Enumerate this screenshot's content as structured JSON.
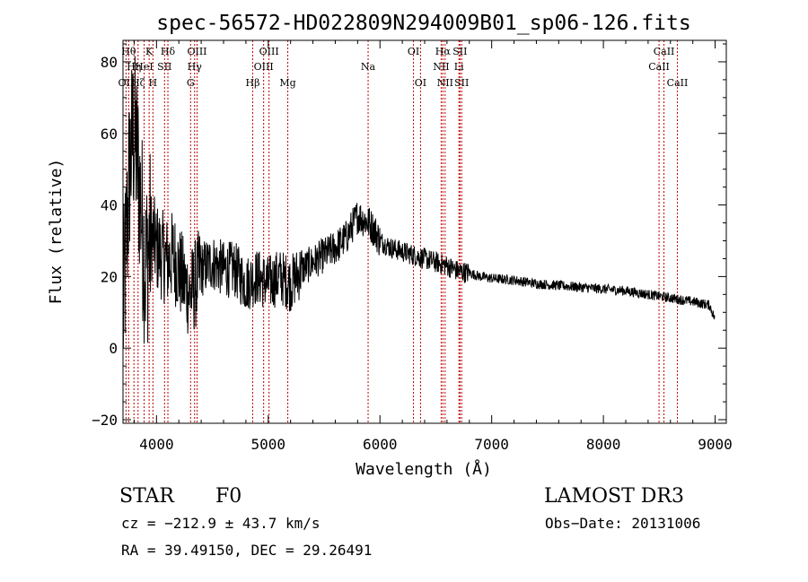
{
  "chart_data": {
    "type": "line",
    "title": "spec-56572-HD022809N294009B01_sp06-126.fits",
    "xlabel": "Wavelength (Å)",
    "ylabel": "Flux (relative)",
    "xlim": [
      3700,
      9100
    ],
    "ylim": [
      -21,
      86
    ],
    "xticks": [
      4000,
      5000,
      6000,
      7000,
      8000,
      9000
    ],
    "yticks": [
      -20,
      0,
      20,
      40,
      60,
      80
    ],
    "grid": false,
    "series": [
      {
        "name": "flux",
        "anchors": [
          [
            3700,
            8
          ],
          [
            3730,
            30
          ],
          [
            3760,
            50
          ],
          [
            3790,
            60
          ],
          [
            3820,
            55
          ],
          [
            3860,
            40
          ],
          [
            3900,
            22
          ],
          [
            3950,
            32
          ],
          [
            4000,
            28
          ],
          [
            4050,
            26
          ],
          [
            4100,
            24
          ],
          [
            4150,
            26
          ],
          [
            4200,
            22
          ],
          [
            4250,
            18
          ],
          [
            4300,
            15
          ],
          [
            4350,
            18
          ],
          [
            4400,
            22
          ],
          [
            4500,
            24
          ],
          [
            4600,
            22
          ],
          [
            4700,
            22
          ],
          [
            4800,
            18
          ],
          [
            4900,
            20
          ],
          [
            5000,
            18
          ],
          [
            5100,
            20
          ],
          [
            5200,
            18
          ],
          [
            5300,
            22
          ],
          [
            5400,
            24
          ],
          [
            5500,
            26
          ],
          [
            5600,
            28
          ],
          [
            5700,
            31
          ],
          [
            5750,
            34
          ],
          [
            5800,
            37
          ],
          [
            5850,
            36
          ],
          [
            5900,
            35
          ],
          [
            5950,
            33
          ],
          [
            6000,
            30
          ],
          [
            6100,
            28
          ],
          [
            6200,
            27
          ],
          [
            6300,
            26
          ],
          [
            6400,
            25
          ],
          [
            6500,
            24
          ],
          [
            6600,
            23
          ],
          [
            6700,
            21.5
          ],
          [
            6800,
            21
          ],
          [
            6900,
            20
          ],
          [
            7000,
            19.5
          ],
          [
            7200,
            19
          ],
          [
            7400,
            18
          ],
          [
            7600,
            17.5
          ],
          [
            7800,
            17
          ],
          [
            8000,
            16.5
          ],
          [
            8200,
            16
          ],
          [
            8400,
            15
          ],
          [
            8600,
            14
          ],
          [
            8800,
            13
          ],
          [
            8950,
            12
          ],
          [
            9000,
            8
          ]
        ]
      }
    ],
    "lines": [
      {
        "label": "OII",
        "x": 3727,
        "row": 3
      },
      {
        "label": "Hθ",
        "x": 3751,
        "row": 1
      },
      {
        "label": "Hη",
        "x": 3798,
        "row": 2
      },
      {
        "label": "Hζ",
        "x": 3835,
        "row": 3
      },
      {
        "label": "HeI",
        "x": 3889,
        "row": 2
      },
      {
        "label": "K",
        "x": 3934,
        "row": 1
      },
      {
        "label": "H",
        "x": 3968,
        "row": 3
      },
      {
        "label": "SII",
        "x": 4072,
        "row": 2
      },
      {
        "label": "Hδ",
        "x": 4102,
        "row": 1
      },
      {
        "label": "G",
        "x": 4305,
        "row": 3
      },
      {
        "label": "Hγ",
        "x": 4341,
        "row": 2
      },
      {
        "label": "OIII",
        "x": 4363,
        "row": 1
      },
      {
        "label": "Hβ",
        "x": 4861,
        "row": 3
      },
      {
        "label": "OIII",
        "x": 4959,
        "row": 2
      },
      {
        "label": "OIII",
        "x": 5007,
        "row": 1
      },
      {
        "label": "Mg",
        "x": 5175,
        "row": 3
      },
      {
        "label": "Na",
        "x": 5894,
        "row": 2
      },
      {
        "label": "OI",
        "x": 6300,
        "row": 1
      },
      {
        "label": "OI",
        "x": 6363,
        "row": 3
      },
      {
        "label": "NII",
        "x": 6548,
        "row": 2
      },
      {
        "label": "Hα",
        "x": 6563,
        "row": 1
      },
      {
        "label": "NII",
        "x": 6583,
        "row": 3
      },
      {
        "label": "Li",
        "x": 6707,
        "row": 2
      },
      {
        "label": "SII",
        "x": 6716,
        "row": 1
      },
      {
        "label": "SII",
        "x": 6731,
        "row": 3
      },
      {
        "label": "CaII",
        "x": 8498,
        "row": 2
      },
      {
        "label": "CaII",
        "x": 8542,
        "row": 1
      },
      {
        "label": "CaII",
        "x": 8662,
        "row": 3
      }
    ]
  },
  "info": {
    "class": "STAR",
    "subclass": "F0",
    "survey": "LAMOST DR3",
    "cz": "cz = −212.9 ± 43.7 km/s",
    "obs_date": "Obs−Date: 20131006",
    "radec": "RA =  39.49150, DEC =  29.26491"
  }
}
